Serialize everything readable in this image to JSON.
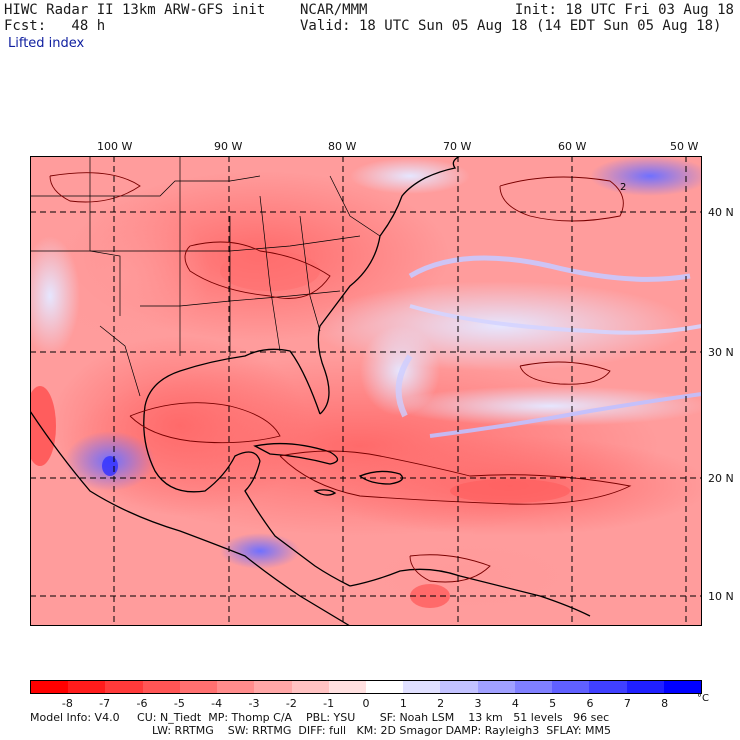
{
  "header": {
    "title_left": "HIWC Radar II 13km ARW-GFS init",
    "org": "NCAR/MMM",
    "fcst": "Fcst:   48 h",
    "init": "Init: 18 UTC Fri 03 Aug 18",
    "valid": "Valid: 18 UTC Sun 05 Aug 18 (14 EDT Sun 05 Aug 18)",
    "field": "Lifted index"
  },
  "axes": {
    "lon_labels": [
      "100 W",
      "90 W",
      "80 W",
      "70 W",
      "60 W",
      "50 W"
    ],
    "lat_labels": [
      "40 N",
      "30 N",
      "20 N",
      "10 N"
    ]
  },
  "colorbar": {
    "labels": [
      "-8",
      "-7",
      "-6",
      "-5",
      "-4",
      "-3",
      "-2",
      "-1",
      "0",
      "1",
      "2",
      "3",
      "4",
      "5",
      "6",
      "7",
      "8"
    ],
    "unit": "°C",
    "colors": [
      "#ff0000",
      "#ff1c1c",
      "#ff3a3a",
      "#ff5555",
      "#ff7070",
      "#ff8c8c",
      "#ffa7a7",
      "#ffc2c2",
      "#ffe0e0",
      "#ffffff",
      "#e0e0ff",
      "#c2c2ff",
      "#a0a0ff",
      "#8080ff",
      "#6060ff",
      "#4040ff",
      "#2020ff",
      "#0000ff"
    ]
  },
  "contour_marker": "2",
  "footer": {
    "line1": "Model Info: V4.0     CU: N_Tiedt  MP: Thomp C/A    PBL: YSU       SF: Noah LSM    13 km   51 levels   96 sec",
    "line2": "LW: RRTMG    SW: RRTMG  DIFF: full   KM: 2D Smagor DAMP: Rayleigh3  SFLAY: MM5"
  }
}
